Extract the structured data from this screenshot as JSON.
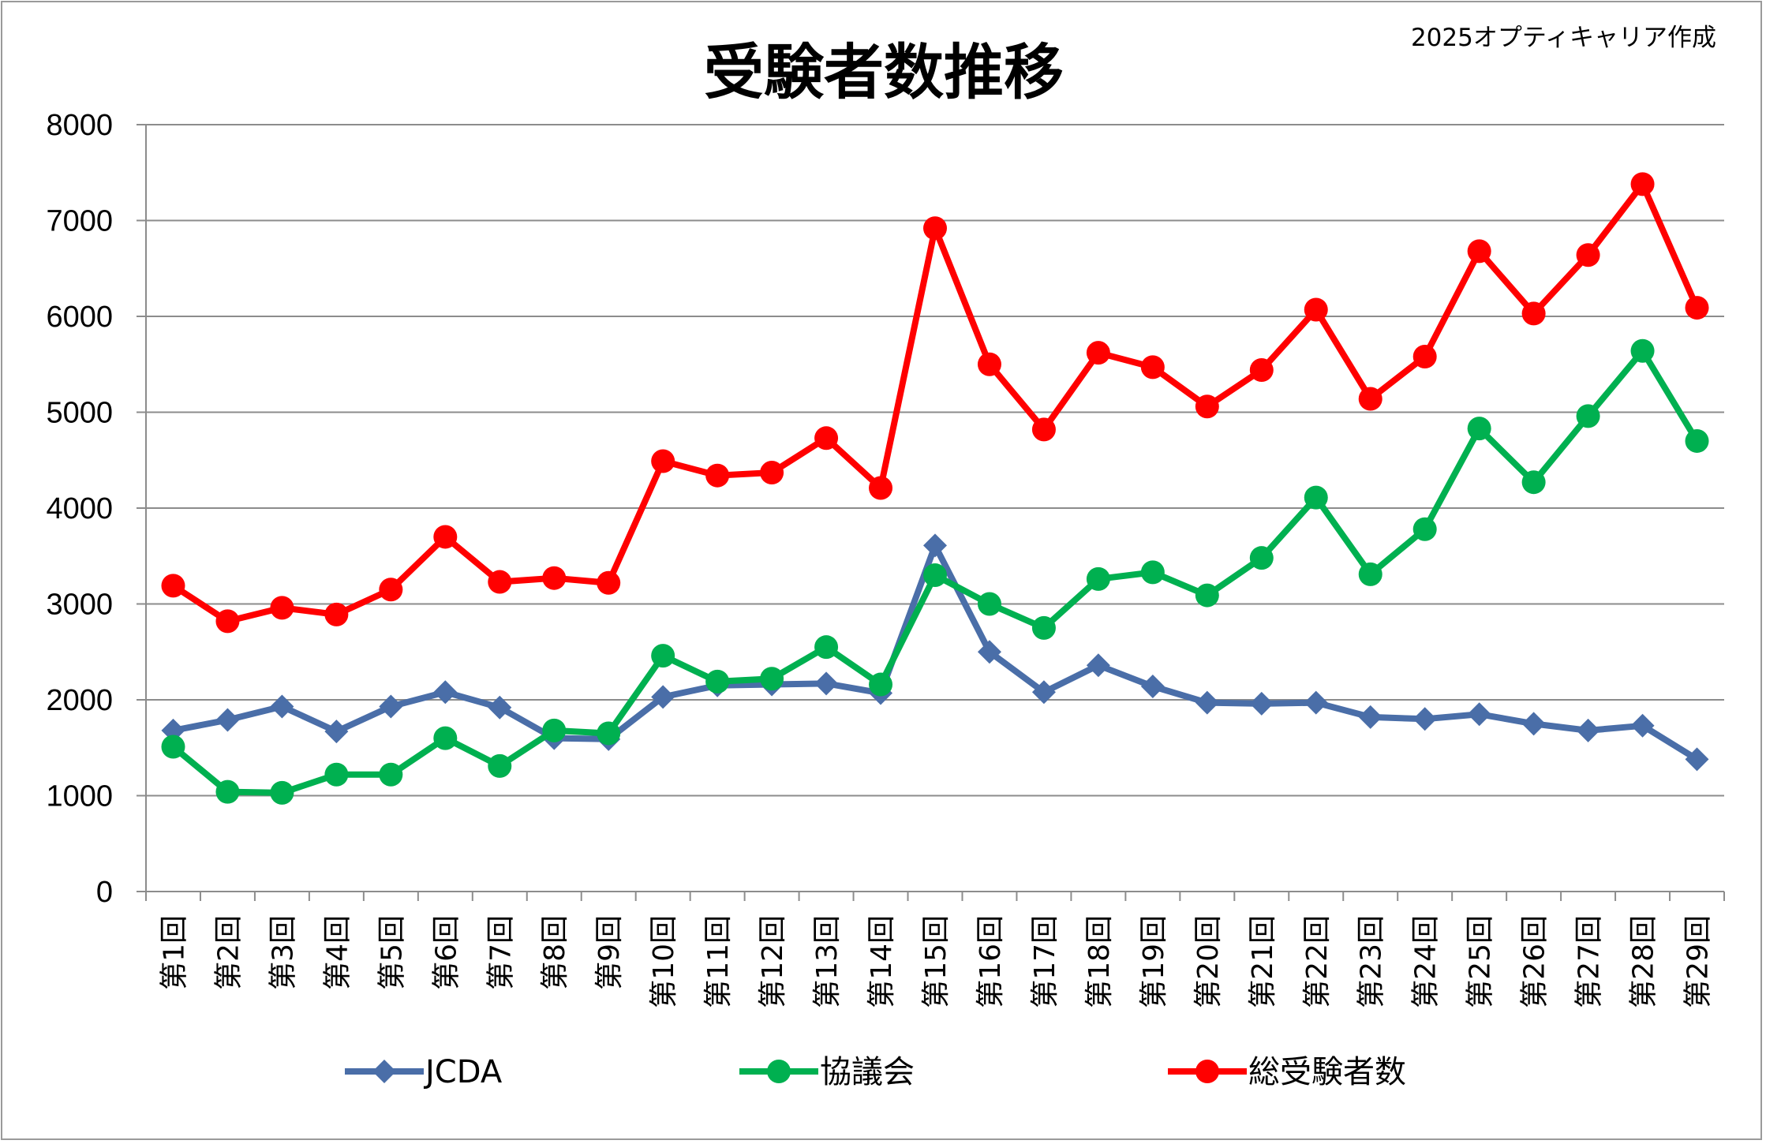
{
  "chart_data": {
    "type": "line",
    "title": "受験者数推移",
    "credit": "2025オプティキャリア作成",
    "xlabel": "",
    "ylabel": "",
    "ylim": [
      0,
      8000
    ],
    "yticks": [
      0,
      1000,
      2000,
      3000,
      4000,
      5000,
      6000,
      7000,
      8000
    ],
    "grid": true,
    "legend_position": "bottom",
    "categories": [
      "第1回",
      "第2回",
      "第3回",
      "第4回",
      "第5回",
      "第6回",
      "第7回",
      "第8回",
      "第9回",
      "第10回",
      "第11回",
      "第12回",
      "第13回",
      "第14回",
      "第15回",
      "第16回",
      "第17回",
      "第18回",
      "第19回",
      "第20回",
      "第21回",
      "第22回",
      "第23回",
      "第24回",
      "第25回",
      "第26回",
      "第27回",
      "第28回",
      "第29回"
    ],
    "series": [
      {
        "name": "JCDA",
        "color": "#4a6ea8",
        "marker": "diamond",
        "values": [
          1680,
          1790,
          1930,
          1670,
          1930,
          2080,
          1920,
          1600,
          1590,
          2030,
          2150,
          2160,
          2170,
          2070,
          3610,
          2500,
          2080,
          2360,
          2140,
          1970,
          1960,
          1970,
          1820,
          1800,
          1850,
          1750,
          1680,
          1730,
          1380
        ]
      },
      {
        "name": "協議会",
        "color": "#00b050",
        "marker": "circle",
        "values": [
          1510,
          1040,
          1030,
          1220,
          1220,
          1600,
          1310,
          1680,
          1650,
          2460,
          2190,
          2220,
          2550,
          2160,
          3300,
          3000,
          2750,
          3260,
          3330,
          3090,
          3480,
          4110,
          3310,
          3780,
          4830,
          4270,
          4960,
          5640,
          4700
        ]
      },
      {
        "name": "総受験者数",
        "color": "#ff0000",
        "marker": "circle",
        "values": [
          3190,
          2820,
          2960,
          2890,
          3150,
          3700,
          3230,
          3270,
          3220,
          4490,
          4340,
          4370,
          4730,
          4210,
          6920,
          5500,
          4820,
          5620,
          5470,
          5060,
          5440,
          6070,
          5140,
          5580,
          6680,
          6030,
          6640,
          7380,
          6090
        ]
      }
    ]
  }
}
